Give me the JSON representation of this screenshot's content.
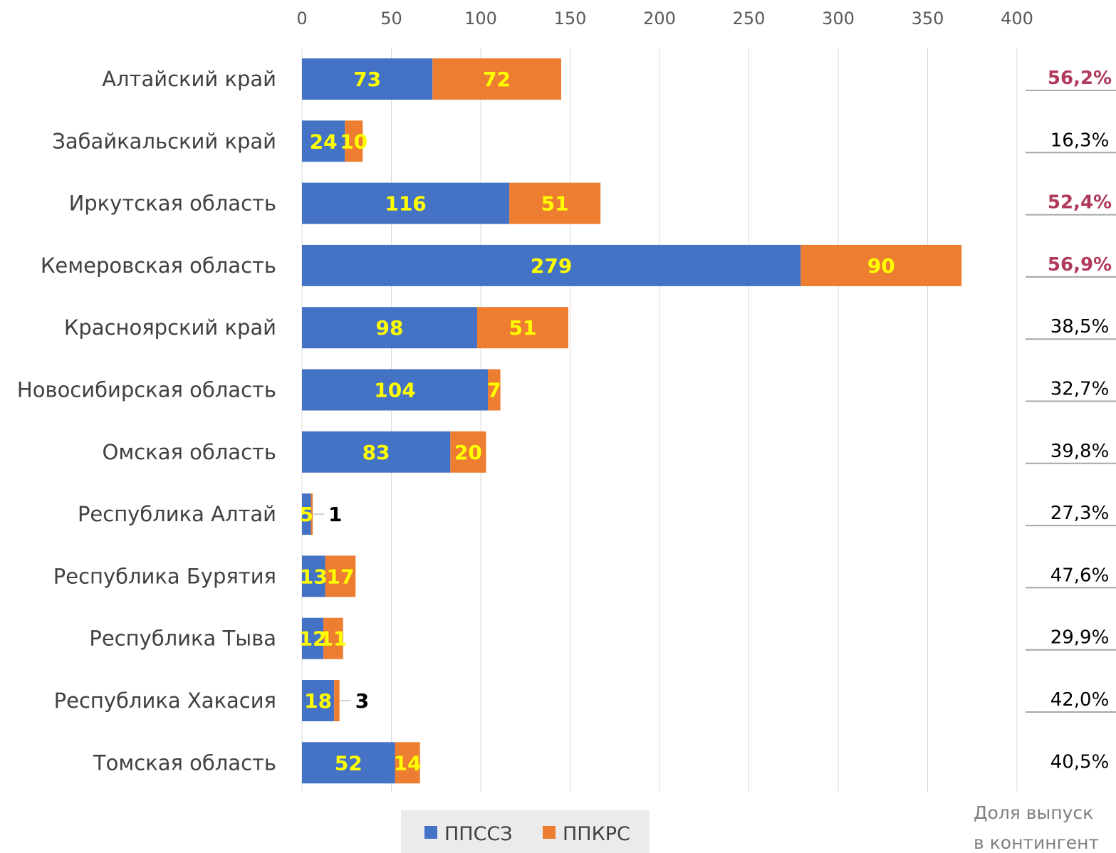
{
  "chart_data": {
    "type": "bar",
    "orientation": "horizontal",
    "stacked": true,
    "title": "",
    "xlabel": "",
    "ylabel": "",
    "xlim": [
      0,
      400
    ],
    "x_ticks": [
      "0",
      "50",
      "100",
      "150",
      "200",
      "250",
      "300",
      "350",
      "400"
    ],
    "x_axis_position": "top",
    "grid": true,
    "legend_position": "bottom",
    "categories": [
      "Алтайский край",
      "Забайкальский край",
      "Иркутская область",
      "Кемеровская область",
      "Красноярский край",
      "Новосибирская область",
      "Омская область",
      "Республика Алтай",
      "Республика Бурятия",
      "Республика Тыва",
      "Республика Хакасия",
      "Томская область"
    ],
    "series": [
      {
        "name": "ППССЗ",
        "color": "#4472c4",
        "values": [
          73,
          24,
          116,
          279,
          98,
          104,
          83,
          5,
          13,
          12,
          18,
          52
        ]
      },
      {
        "name": "ППКРС",
        "color": "#ed7d31",
        "values": [
          72,
          10,
          51,
          90,
          51,
          7,
          20,
          1,
          17,
          11,
          3,
          14
        ]
      }
    ],
    "share": {
      "values": [
        "56,2%",
        "16,3%",
        "52,4%",
        "56,9%",
        "38,5%",
        "32,7%",
        "39,8%",
        "27,3%",
        "47,6%",
        "29,9%",
        "42,0%",
        "40,5%"
      ],
      "highlighted": [
        true,
        false,
        true,
        true,
        false,
        false,
        false,
        false,
        false,
        false,
        false,
        false
      ],
      "highlight_color": "#b03a5b"
    },
    "footnote_lines": [
      "Доля выпуск",
      "в контингент"
    ]
  }
}
